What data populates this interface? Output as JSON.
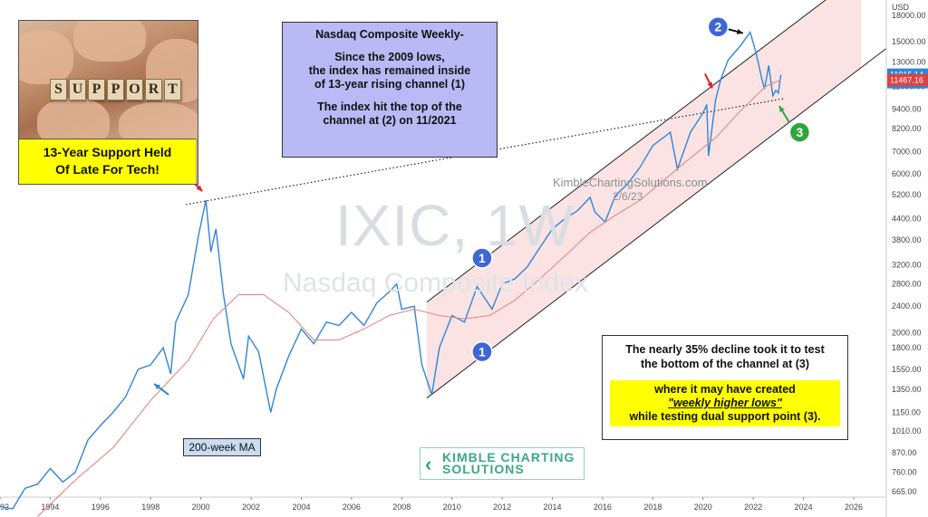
{
  "chart_data": {
    "type": "line",
    "title": "IXIC, 1W",
    "subtitle": "Nasdaq Composite Index",
    "currency": "USD",
    "y_scale": "log",
    "ylim": [
      640,
      20000
    ],
    "xlim": [
      1992,
      2027.3
    ],
    "x_ticks": [
      "1992",
      "1994",
      "1996",
      "1998",
      "2000",
      "2002",
      "2004",
      "2006",
      "2008",
      "2010",
      "2012",
      "2014",
      "2016",
      "2018",
      "2020",
      "2022",
      "2024",
      "2026"
    ],
    "y_ticks": [
      "18000.00",
      "15000.00",
      "13000.00",
      "11000.00",
      "9400.00",
      "8200.00",
      "7000.00",
      "6000.00",
      "5200.00",
      "4400.00",
      "3800.00",
      "3200.00",
      "2800.00",
      "2400.00",
      "2000.00",
      "1800.00",
      "1550.00",
      "1350.00",
      "1150.00",
      "1010.00",
      "870.00",
      "760.00",
      "665.00"
    ],
    "series": [
      {
        "name": "IXIC",
        "color": "#2f86d8",
        "points": [
          [
            1992.0,
            600
          ],
          [
            1992.5,
            590
          ],
          [
            1993.0,
            680
          ],
          [
            1993.5,
            700
          ],
          [
            1994.0,
            780
          ],
          [
            1994.5,
            710
          ],
          [
            1995.0,
            760
          ],
          [
            1995.5,
            950
          ],
          [
            1996.0,
            1050
          ],
          [
            1996.5,
            1150
          ],
          [
            1997.0,
            1280
          ],
          [
            1997.5,
            1550
          ],
          [
            1998.0,
            1600
          ],
          [
            1998.5,
            1800
          ],
          [
            1998.8,
            1500
          ],
          [
            1999.0,
            2150
          ],
          [
            1999.5,
            2600
          ],
          [
            1999.9,
            3900
          ],
          [
            2000.2,
            5000
          ],
          [
            2000.4,
            3500
          ],
          [
            2000.6,
            4100
          ],
          [
            2000.9,
            2600
          ],
          [
            2001.2,
            1850
          ],
          [
            2001.7,
            1450
          ],
          [
            2001.9,
            1950
          ],
          [
            2002.3,
            1750
          ],
          [
            2002.78,
            1150
          ],
          [
            2003.0,
            1350
          ],
          [
            2003.5,
            1700
          ],
          [
            2004.0,
            2050
          ],
          [
            2004.5,
            1850
          ],
          [
            2005.0,
            2150
          ],
          [
            2005.5,
            2100
          ],
          [
            2006.0,
            2300
          ],
          [
            2006.5,
            2100
          ],
          [
            2007.0,
            2450
          ],
          [
            2007.5,
            2650
          ],
          [
            2007.8,
            2800
          ],
          [
            2008.0,
            2350
          ],
          [
            2008.5,
            2400
          ],
          [
            2008.8,
            1600
          ],
          [
            2009.2,
            1300
          ],
          [
            2009.5,
            1800
          ],
          [
            2010.0,
            2250
          ],
          [
            2010.5,
            2150
          ],
          [
            2011.0,
            2750
          ],
          [
            2011.6,
            2350
          ],
          [
            2012.0,
            2800
          ],
          [
            2012.5,
            2900
          ],
          [
            2013.0,
            3150
          ],
          [
            2013.5,
            3600
          ],
          [
            2014.0,
            4100
          ],
          [
            2014.5,
            4400
          ],
          [
            2015.0,
            4650
          ],
          [
            2015.5,
            5100
          ],
          [
            2015.7,
            4600
          ],
          [
            2016.1,
            4300
          ],
          [
            2016.5,
            5150
          ],
          [
            2017.0,
            5600
          ],
          [
            2017.5,
            6300
          ],
          [
            2018.0,
            7300
          ],
          [
            2018.7,
            8000
          ],
          [
            2018.98,
            6200
          ],
          [
            2019.5,
            8000
          ],
          [
            2020.0,
            9150
          ],
          [
            2020.15,
            9700
          ],
          [
            2020.22,
            6800
          ],
          [
            2020.5,
            10000
          ],
          [
            2020.7,
            11500
          ],
          [
            2021.0,
            13200
          ],
          [
            2021.5,
            14600
          ],
          [
            2021.88,
            16000
          ],
          [
            2022.1,
            14000
          ],
          [
            2022.35,
            11500
          ],
          [
            2022.45,
            10800
          ],
          [
            2022.62,
            12700
          ],
          [
            2022.78,
            10300
          ],
          [
            2022.9,
            10700
          ],
          [
            2023.0,
            10500
          ],
          [
            2023.1,
            11915
          ]
        ]
      },
      {
        "name": "200-week MA",
        "color": "#e08a85",
        "points": [
          [
            1993.5,
            560
          ],
          [
            1995.0,
            720
          ],
          [
            1996.5,
            900
          ],
          [
            1998.0,
            1250
          ],
          [
            1999.5,
            1650
          ],
          [
            2000.5,
            2200
          ],
          [
            2001.5,
            2600
          ],
          [
            2002.5,
            2600
          ],
          [
            2003.5,
            2300
          ],
          [
            2004.5,
            1900
          ],
          [
            2005.5,
            1900
          ],
          [
            2006.5,
            2050
          ],
          [
            2007.5,
            2250
          ],
          [
            2008.5,
            2350
          ],
          [
            2009.5,
            2250
          ],
          [
            2010.5,
            2200
          ],
          [
            2011.5,
            2250
          ],
          [
            2012.5,
            2500
          ],
          [
            2013.5,
            2900
          ],
          [
            2014.5,
            3400
          ],
          [
            2015.5,
            4000
          ],
          [
            2016.5,
            4500
          ],
          [
            2017.5,
            5000
          ],
          [
            2018.5,
            5800
          ],
          [
            2019.5,
            6700
          ],
          [
            2020.5,
            7700
          ],
          [
            2021.5,
            9300
          ],
          [
            2022.5,
            11000
          ],
          [
            2023.1,
            11500
          ]
        ]
      }
    ],
    "current_price": "11915.14",
    "current_price_sub": "4d 5h",
    "ma_price": "11467.16"
  },
  "annotations": {
    "source_label": "KimbleChartingSolutions.com",
    "source_date": "2/6/23",
    "ma_label": "200-week MA",
    "markers": [
      {
        "label": "1"
      },
      {
        "label": "1"
      },
      {
        "label": "2"
      },
      {
        "label": "3"
      }
    ]
  },
  "support_box": {
    "tiles": [
      "S",
      "U",
      "P",
      "P",
      "O",
      "R",
      "T"
    ],
    "caption_line1": "13-Year Support Held",
    "caption_line2": "Of Late For Tech!"
  },
  "note_box": {
    "title": "Nasdaq Composite Weekly-",
    "line1": "Since the 2009 lows,",
    "line2": "the index has remained inside",
    "line3": "of 13-year rising channel (1)",
    "line4": "The index hit the top of the",
    "line5": "channel at (2) on 11/2021"
  },
  "decline_box": {
    "line1": "The nearly 35% decline took it to test",
    "line2": "the bottom of the channel at (3)",
    "hl1": "where it may have created",
    "hl2": "\"weekly higher lows\"",
    "hl3": "while testing dual support point (3)."
  },
  "logo": {
    "line1": "KIMBLE CHARTING",
    "line2": "SOLUTIONS"
  },
  "colors": {
    "price_line": "#2f86d8",
    "ma_line": "#e08a85",
    "channel_fill": "#fbe3e3",
    "marker_blue": "#3d66d6",
    "marker_green": "#2fa63c",
    "arrow_red": "#e02020",
    "price_tag_blue": "#2f86d8",
    "price_tag_red": "#e04040"
  }
}
